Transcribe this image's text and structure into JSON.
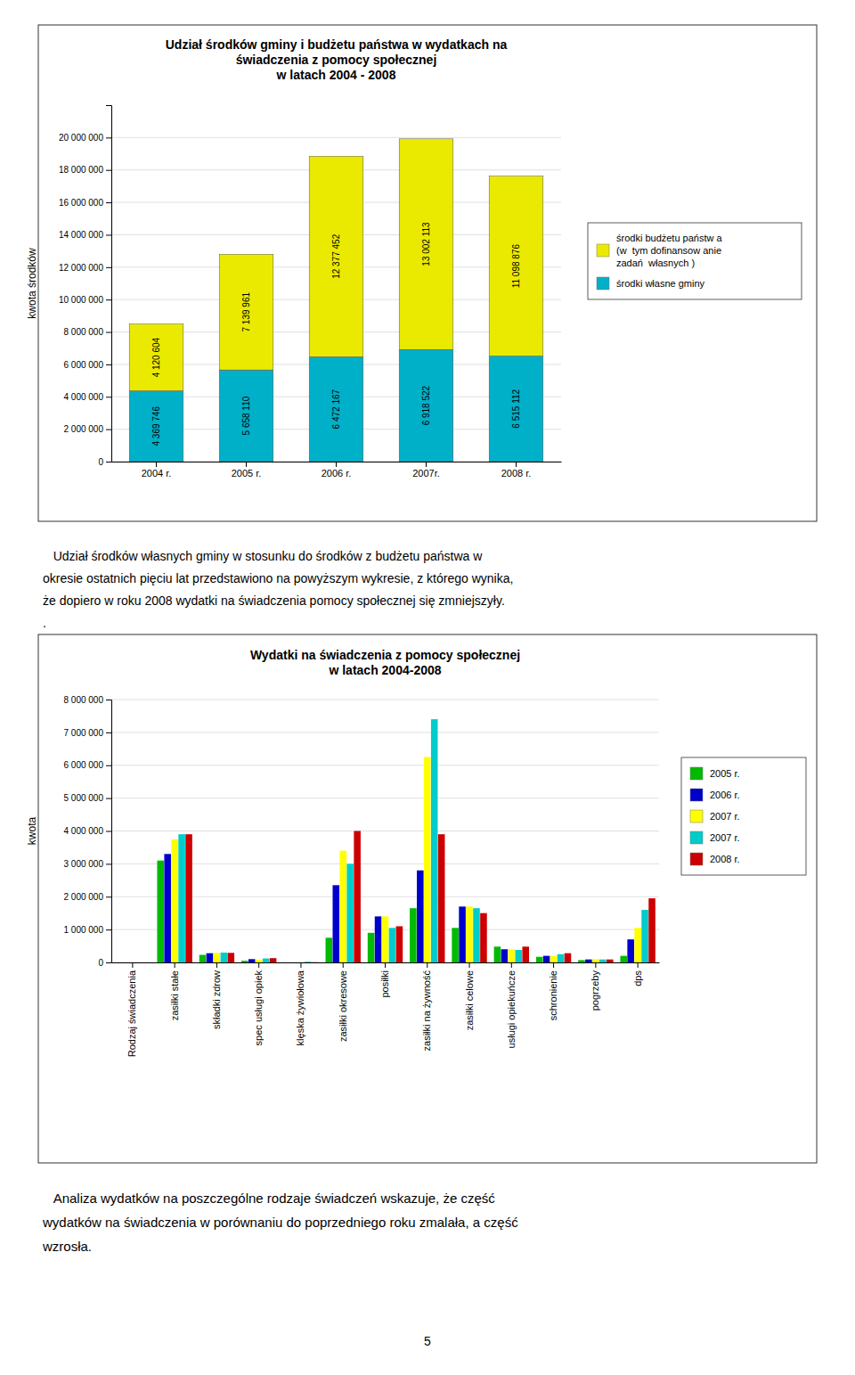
{
  "chart_data": [
    {
      "type": "bar",
      "stacked": true,
      "title": "Udział środków gminy i budżetu państwa w wydatkach na\nświadczenia z pomocy społecznej\nw latach 2004 - 2008",
      "y_label": "kwota środków",
      "categories": [
        "2004 r.",
        "2005 r.",
        "2006 r.",
        "2007r.",
        "2008 r."
      ],
      "series": [
        {
          "name": "środki własne gminy",
          "color": "#00B0C8",
          "values": [
            4369746,
            5658110,
            6472167,
            6918522,
            6515112
          ],
          "value_labels": [
            "4 369 746",
            "5 658 110",
            "6 472 167",
            "6 918 522",
            "6 515 112"
          ]
        },
        {
          "name": "środki budżetu państw a\n(w  tym dofinansow anie\nzadań  własnych )",
          "color": "#EAEA00",
          "values": [
            4120604,
            7139961,
            12377452,
            13002113,
            11098876
          ],
          "value_labels": [
            "4 120 604",
            "7 139 961",
            "12 377 452",
            "13 002 113",
            "11 098 876"
          ]
        }
      ],
      "data_labels": true,
      "ylim": [
        0,
        22000000
      ],
      "yticks": [
        0,
        {
          "value": 2000000,
          "label": "2 000 000"
        },
        {
          "value": 4000000,
          "label": "4 000 000"
        },
        {
          "value": 6000000,
          "label": "6 000 000"
        },
        {
          "value": 8000000,
          "label": "8 000 000"
        },
        {
          "value": 10000000,
          "label": "10 000 000"
        },
        {
          "value": 12000000,
          "label": "12 000 000"
        },
        {
          "value": 14000000,
          "label": "14 000 000"
        },
        {
          "value": 16000000,
          "label": "16 000 000"
        },
        {
          "value": 18000000,
          "label": "18 000 000"
        },
        {
          "value": 20000000,
          "label": "20 000 000"
        }
      ],
      "grid": true,
      "legend": "right"
    },
    {
      "type": "bar",
      "title": "Wydatki na świadczenia z pomocy społecznej\nw latach 2004-2008",
      "y_label": "kwota",
      "categories": [
        "Rodzaj świadczenia",
        "zasiłki stałe",
        "składki zdrow",
        "spec usługi opiek",
        "klęska żywiołowa",
        "zasiłki okresowe",
        "posiłki",
        "zasiłki na żywność",
        "zasiłki celowe",
        "usługi opiekuńcze",
        "schronienie",
        "pogrzeby",
        "dps"
      ],
      "series": [
        {
          "name": "2005 r.",
          "color": "#00BB00",
          "values": [
            0,
            3100000,
            230000,
            50000,
            0,
            750000,
            900000,
            1650000,
            1050000,
            480000,
            170000,
            70000,
            200000
          ]
        },
        {
          "name": "2006 r.",
          "color": "#0000CC",
          "values": [
            0,
            3300000,
            280000,
            100000,
            0,
            2350000,
            1400000,
            2800000,
            1700000,
            400000,
            200000,
            90000,
            700000
          ]
        },
        {
          "name": "2007 r.",
          "color": "#FFFF00",
          "values": [
            0,
            3750000,
            290000,
            80000,
            0,
            3400000,
            1400000,
            6250000,
            1700000,
            400000,
            200000,
            100000,
            1050000
          ]
        },
        {
          "name": "2007 r.",
          "color": "#00CCCC",
          "values": [
            0,
            3900000,
            300000,
            120000,
            20000,
            3000000,
            1050000,
            7400000,
            1650000,
            380000,
            250000,
            90000,
            1600000
          ]
        },
        {
          "name": "2008 r.",
          "color": "#CC0000",
          "values": [
            0,
            3900000,
            290000,
            130000,
            5000,
            4000000,
            1100000,
            3900000,
            1500000,
            480000,
            280000,
            90000,
            1950000
          ]
        }
      ],
      "ylim": [
        0,
        8000000
      ],
      "yticks": [
        0,
        {
          "value": 1000000,
          "label": "1 000 000"
        },
        {
          "value": 2000000,
          "label": "2 000 000"
        },
        {
          "value": 3000000,
          "label": "3 000 000"
        },
        {
          "value": 4000000,
          "label": "4 000 000"
        },
        {
          "value": 5000000,
          "label": "5 000 000"
        },
        {
          "value": 6000000,
          "label": "6 000 000"
        },
        {
          "value": 7000000,
          "label": "7 000 000"
        },
        {
          "value": 8000000,
          "label": "8 000 000"
        }
      ],
      "grid": true,
      "legend": "right"
    }
  ],
  "paragraphs": [
    [
      "   Udział środków własnych gminy w stosunku do środków z budżetu państwa w",
      "okresie ostatnich pięciu lat przedstawiono na powyższym wykresie, z którego wynika,",
      "że dopiero w roku 2008 wydatki na świadczenia pomocy społecznej się zmniejszyły.",
      "."
    ],
    [
      "   Analiza wydatków na poszczególne rodzaje świadczeń wskazuje, że część",
      "wydatków na świadczenia w porównaniu do poprzedniego roku zmalała, a część",
      "wzrosła."
    ]
  ],
  "page_number": "5"
}
